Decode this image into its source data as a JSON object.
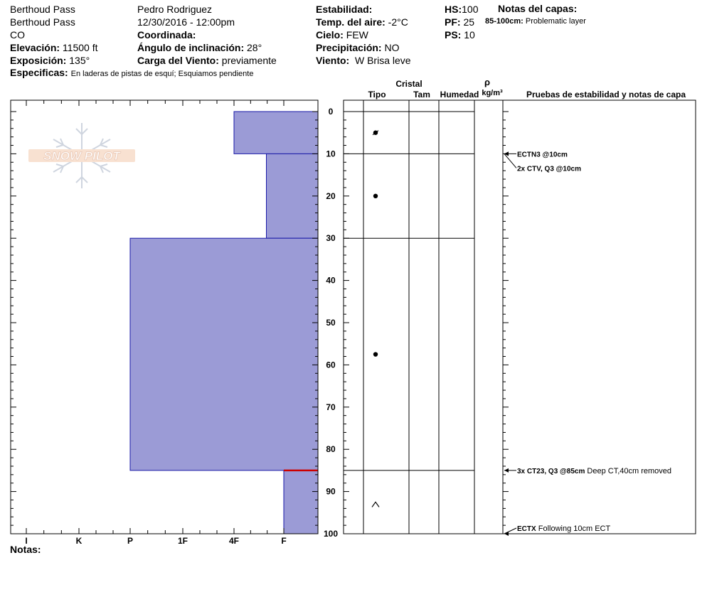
{
  "header": {
    "location": "Berthoud Pass",
    "sublocation": "Berthoud Pass",
    "state": "CO",
    "elevation_label": "Elevación:",
    "elevation_value": "11500 ft",
    "aspect_label": "Exposición:",
    "aspect_value": "135°",
    "specifics_label": "Especificas:",
    "specifics_value": "En laderas de pistas de esquí; Esquiamos pendiente",
    "observer": "Pedro Rodriguez",
    "datetime": "12/30/2016 - 12:00pm",
    "coord_label": "Coordinada:",
    "slope_label": "Ángulo de inclinación:",
    "slope_value": "28°",
    "wind_load_label": "Carga del Viento:",
    "wind_load_value": "previamente",
    "stability_label": "Estabilidad:",
    "air_temp_label": "Temp. del aire:",
    "air_temp_value": "-2°C",
    "sky_label": "Cielo:",
    "sky_value": "FEW",
    "precip_label": "Precipitación:",
    "precip_value": "NO",
    "wind_label": "Viento:",
    "wind_value": "W Brisa leve",
    "hs_label": "HS:",
    "hs_value": "100",
    "pf_label": "PF:",
    "pf_value": "25",
    "ps_label": "PS:",
    "ps_value": "10",
    "layer_notes_label": "Notas del capas:",
    "layer_note_range": "85-100cm:",
    "layer_note_text": "Problematic layer"
  },
  "logo_text": "SNOW PILOT",
  "notes_label": "Notas:",
  "colors": {
    "layer_fill": "#9b9bd6",
    "layer_stroke": "#1a1aa8",
    "weak_layer": "#cc0000"
  },
  "columns": {
    "cristal": "Cristal",
    "tipo": "Tipo",
    "tam": "Tam",
    "humedad": "Humedad",
    "rho": "ρ",
    "density_unit": "kg/m³",
    "tests": "Pruebas de estabilidad y notas de capa"
  },
  "chart_data": {
    "type": "bar",
    "orientation": "horizontal",
    "description_axis": "hardness",
    "x_categories": [
      "I",
      "K",
      "P",
      "1F",
      "4F",
      "F"
    ],
    "y_ticks": [
      0,
      10,
      20,
      30,
      40,
      50,
      60,
      70,
      80,
      90,
      100
    ],
    "ylim": [
      0,
      100
    ],
    "layers": [
      {
        "top": 0,
        "bottom": 10,
        "hardness": 4.0
      },
      {
        "top": 10,
        "bottom": 30,
        "hardness": 4.65
      },
      {
        "top": 30,
        "bottom": 85,
        "hardness": 2.0
      },
      {
        "top": 85,
        "bottom": 100,
        "hardness": 5.0
      }
    ],
    "weak_layer_depth": 85,
    "layer_boundaries": [
      0,
      10,
      30,
      85,
      100
    ],
    "grain_symbols": [
      {
        "depth": 5,
        "symbol": "decomposing"
      },
      {
        "depth": 20,
        "symbol": "round"
      },
      {
        "depth": 57.5,
        "symbol": "round"
      },
      {
        "depth": 93,
        "symbol": "depth-hoar"
      }
    ],
    "tests": [
      {
        "depth": 10,
        "bold": "ECTN3 @10cm",
        "note": ""
      },
      {
        "depth": 10,
        "bold": "2x CTV, Q3 @10cm",
        "note": ""
      },
      {
        "depth": 85,
        "bold": "3x CT23, Q3 @85cm",
        "note": "Deep CT,40cm removed"
      },
      {
        "depth": 100,
        "bold": "ECTX",
        "note": "Following 10cm ECT"
      }
    ]
  }
}
